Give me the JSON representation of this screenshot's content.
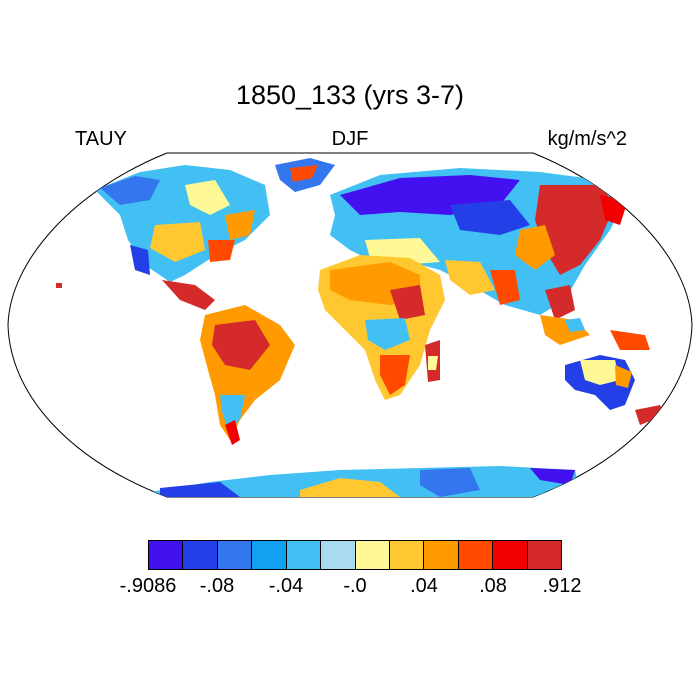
{
  "title": "1850_133 (yrs 3-7)",
  "left_label": "TAUY",
  "center_label": "DJF",
  "right_label": "kg/m/s^2",
  "projection": "Robinson",
  "colorbar": {
    "colors": [
      "#4311f0",
      "#2340e8",
      "#3376ee",
      "#12a0f2",
      "#42c0f4",
      "#a8dbf0",
      "#fff896",
      "#ffc830",
      "#ff9a00",
      "#ff4a00",
      "#f20000",
      "#d42a2a"
    ],
    "ticks": [
      {
        "label": "-.9086",
        "slot": 0
      },
      {
        "label": "-.08",
        "slot": 2
      },
      {
        "label": "-.04",
        "slot": 4
      },
      {
        "label": "-.0",
        "slot": 6
      },
      {
        "label": ".04",
        "slot": 8
      },
      {
        "label": ".08",
        "slot": 10
      },
      {
        "label": ".912",
        "slot": 12
      }
    ]
  }
}
